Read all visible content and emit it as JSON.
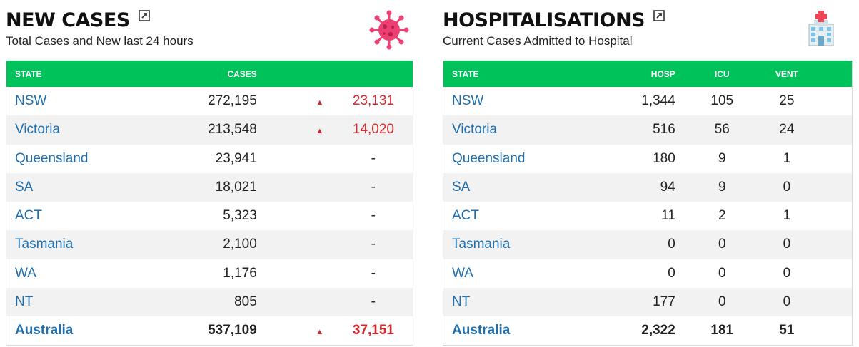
{
  "cases": {
    "title": "NEW CASES",
    "subtitle": "Total Cases and New last 24 hours",
    "headers": {
      "state": "STATE",
      "cases": "CASES"
    },
    "up_glyph": "▲",
    "icon": "virus-icon",
    "rows": [
      {
        "state": "NSW",
        "cases": "272,195",
        "new": "23,131"
      },
      {
        "state": "Victoria",
        "cases": "213,548",
        "new": "14,020"
      },
      {
        "state": "Queensland",
        "cases": "23,941",
        "new": "-"
      },
      {
        "state": "SA",
        "cases": "18,021",
        "new": "-"
      },
      {
        "state": "ACT",
        "cases": "5,323",
        "new": "-"
      },
      {
        "state": "Tasmania",
        "cases": "2,100",
        "new": "-"
      },
      {
        "state": "WA",
        "cases": "1,176",
        "new": "-"
      },
      {
        "state": "NT",
        "cases": "805",
        "new": "-"
      }
    ],
    "total": {
      "state": "Australia",
      "cases": "537,109",
      "new": "37,151"
    }
  },
  "hosp": {
    "title": "HOSPITALISATIONS",
    "subtitle": "Current Cases Admitted to Hospital",
    "headers": {
      "state": "STATE",
      "hosp": "HOSP",
      "icu": "ICU",
      "vent": "VENT"
    },
    "icon": "hospital-icon",
    "rows": [
      {
        "state": "NSW",
        "hosp": "1,344",
        "icu": "105",
        "vent": "25"
      },
      {
        "state": "Victoria",
        "hosp": "516",
        "icu": "56",
        "vent": "24"
      },
      {
        "state": "Queensland",
        "hosp": "180",
        "icu": "9",
        "vent": "1"
      },
      {
        "state": "SA",
        "hosp": "94",
        "icu": "9",
        "vent": "0"
      },
      {
        "state": "ACT",
        "hosp": "11",
        "icu": "2",
        "vent": "1"
      },
      {
        "state": "Tasmania",
        "hosp": "0",
        "icu": "0",
        "vent": "0"
      },
      {
        "state": "WA",
        "hosp": "0",
        "icu": "0",
        "vent": "0"
      },
      {
        "state": "NT",
        "hosp": "177",
        "icu": "0",
        "vent": "0"
      }
    ],
    "total": {
      "state": "Australia",
      "hosp": "2,322",
      "icu": "181",
      "vent": "51"
    }
  },
  "colors": {
    "header_green": "#00c25a",
    "link_blue": "#1f6fae",
    "increase_red": "#d6262b",
    "virus_pink": "#ee3f73"
  }
}
